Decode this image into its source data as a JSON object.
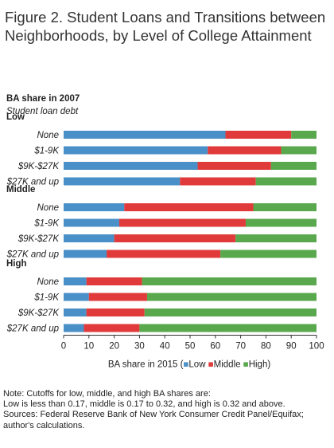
{
  "title_line1": "Figure 2. Student Loans and Transitions between",
  "title_line2": "Neighborhoods, by Level of College Attainment",
  "header_title": "BA share in 2007",
  "header_subtitle": "Student loan debt",
  "notes": [
    "Note: Cutoffs for low, middle, and high BA shares are:",
    "Low is less than 0.17, middle is 0.17 to 0.32, and high is 0.32 and above.",
    "Sources: Federal Reserve Bank of New York Consumer Credit Panel/Equifax;",
    "author's calculations."
  ],
  "chart_data": {
    "type": "bar",
    "orientation": "horizontal",
    "stacked": true,
    "xlabel": "BA share in 2015",
    "xlim": [
      0,
      100
    ],
    "xticks": [
      0,
      10,
      20,
      30,
      40,
      50,
      60,
      70,
      80,
      90,
      100
    ],
    "grid": false,
    "legend_position": "bottom",
    "series_colors": {
      "Low": "#4a90c8",
      "Middle": "#e03a3a",
      "High": "#5aa84e"
    },
    "groups": [
      {
        "label": "Low",
        "rows": [
          {
            "category": "None",
            "Low": 64,
            "Middle": 26,
            "High": 10
          },
          {
            "category": "$1-9K",
            "Low": 57,
            "Middle": 29,
            "High": 14
          },
          {
            "category": "$9K-$27K",
            "Low": 53,
            "Middle": 29,
            "High": 18
          },
          {
            "category": "$27K and up",
            "Low": 46,
            "Middle": 30,
            "High": 24
          }
        ]
      },
      {
        "label": "Middle",
        "rows": [
          {
            "category": "None",
            "Low": 24,
            "Middle": 51,
            "High": 25
          },
          {
            "category": "$1-9K",
            "Low": 22,
            "Middle": 50,
            "High": 28
          },
          {
            "category": "$9K-$27K",
            "Low": 20,
            "Middle": 48,
            "High": 32
          },
          {
            "category": "$27K and up",
            "Low": 17,
            "Middle": 45,
            "High": 38
          }
        ]
      },
      {
        "label": "High",
        "rows": [
          {
            "category": "None",
            "Low": 9,
            "Middle": 22,
            "High": 69
          },
          {
            "category": "$1-9K",
            "Low": 10,
            "Middle": 23,
            "High": 67
          },
          {
            "category": "$9K-$27K",
            "Low": 9,
            "Middle": 23,
            "High": 68
          },
          {
            "category": "$27K and up",
            "Low": 8,
            "Middle": 22,
            "High": 70
          }
        ]
      }
    ]
  }
}
